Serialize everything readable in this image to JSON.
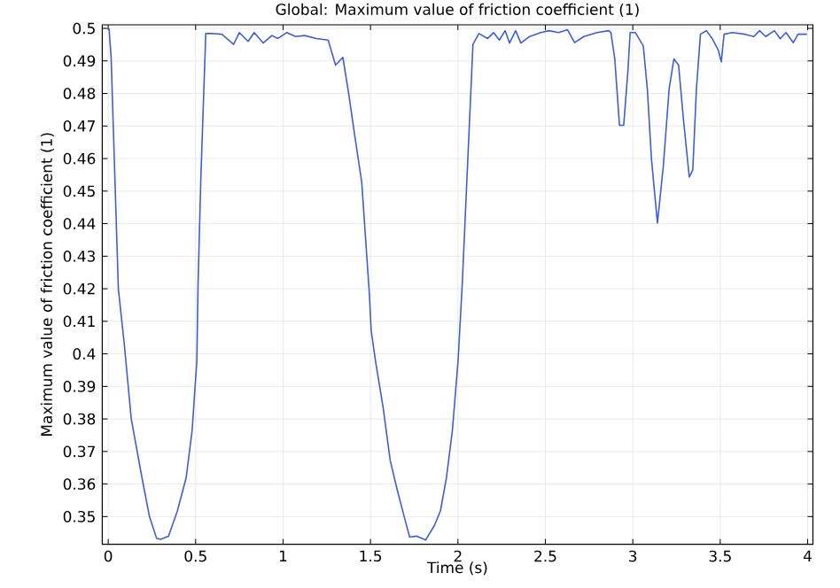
{
  "chart_data": {
    "type": "line",
    "title": "Global: Maximum value of friction coefficient (1)",
    "xlabel": "Time (s)",
    "ylabel": "Maximum value of friction coefficient (1)",
    "xlim": [
      -0.034,
      4.03
    ],
    "ylim": [
      0.3415,
      0.5011
    ],
    "xticks": [
      0,
      0.5,
      1,
      1.5,
      2,
      2.5,
      3,
      3.5,
      4
    ],
    "yticks": [
      0.35,
      0.36,
      0.37,
      0.38,
      0.39,
      0.4,
      0.41,
      0.42,
      0.43,
      0.44,
      0.45,
      0.46,
      0.47,
      0.48,
      0.49,
      0.5
    ],
    "grid": true,
    "marker": "none",
    "line_style": "solid",
    "series": [
      {
        "color": "#3d5fd6",
        "x": [
          0.005,
          0.017,
          0.058,
          0.091,
          0.132,
          0.193,
          0.236,
          0.277,
          0.3,
          0.345,
          0.396,
          0.446,
          0.48,
          0.507,
          0.514,
          0.53,
          0.558,
          0.6,
          0.65,
          0.717,
          0.75,
          0.8,
          0.835,
          0.886,
          0.936,
          0.97,
          1.021,
          1.072,
          1.123,
          1.19,
          1.258,
          1.3,
          1.342,
          1.376,
          1.41,
          1.45,
          1.494,
          1.504,
          1.528,
          1.572,
          1.613,
          1.653,
          1.697,
          1.724,
          1.765,
          1.815,
          1.866,
          1.9,
          1.934,
          1.968,
          2.001,
          2.025,
          2.052,
          2.086,
          2.12,
          2.17,
          2.204,
          2.237,
          2.27,
          2.295,
          2.33,
          2.36,
          2.41,
          2.475,
          2.52,
          2.576,
          2.627,
          2.667,
          2.72,
          2.796,
          2.863,
          2.875,
          2.897,
          2.924,
          2.948,
          2.972,
          2.985,
          3.015,
          3.06,
          3.083,
          3.107,
          3.141,
          3.175,
          3.208,
          3.235,
          3.262,
          3.289,
          3.323,
          3.343,
          3.364,
          3.387,
          3.421,
          3.455,
          3.489,
          3.506,
          3.522,
          3.57,
          3.64,
          3.692,
          3.725,
          3.76,
          3.81,
          3.843,
          3.876,
          3.918,
          3.945,
          3.996
        ],
        "values": [
          0.5,
          0.4908,
          0.42,
          0.4035,
          0.38,
          0.362,
          0.35,
          0.3433,
          0.343,
          0.344,
          0.3518,
          0.362,
          0.3765,
          0.398,
          0.4217,
          0.4543,
          0.4984,
          0.4984,
          0.4982,
          0.4951,
          0.4987,
          0.496,
          0.4987,
          0.4955,
          0.4978,
          0.4969,
          0.4987,
          0.4975,
          0.4978,
          0.4969,
          0.4964,
          0.4887,
          0.4911,
          0.4797,
          0.467,
          0.4527,
          0.418,
          0.4071,
          0.398,
          0.3836,
          0.3672,
          0.3582,
          0.3491,
          0.3437,
          0.344,
          0.3428,
          0.3473,
          0.3518,
          0.3618,
          0.3763,
          0.398,
          0.4217,
          0.4543,
          0.4951,
          0.4984,
          0.4969,
          0.4987,
          0.4964,
          0.4993,
          0.4955,
          0.4993,
          0.4955,
          0.4975,
          0.4987,
          0.4993,
          0.4987,
          0.4996,
          0.4956,
          0.4975,
          0.4987,
          0.4993,
          0.4987,
          0.4906,
          0.4702,
          0.4702,
          0.4869,
          0.4987,
          0.4987,
          0.4946,
          0.4815,
          0.4597,
          0.4402,
          0.4579,
          0.4815,
          0.4906,
          0.4887,
          0.4724,
          0.4543,
          0.4565,
          0.4815,
          0.4982,
          0.4993,
          0.4968,
          0.4933,
          0.4897,
          0.4982,
          0.4987,
          0.4982,
          0.4975,
          0.4993,
          0.4975,
          0.4993,
          0.4968,
          0.4987,
          0.4956,
          0.4982,
          0.4982
        ]
      }
    ]
  }
}
